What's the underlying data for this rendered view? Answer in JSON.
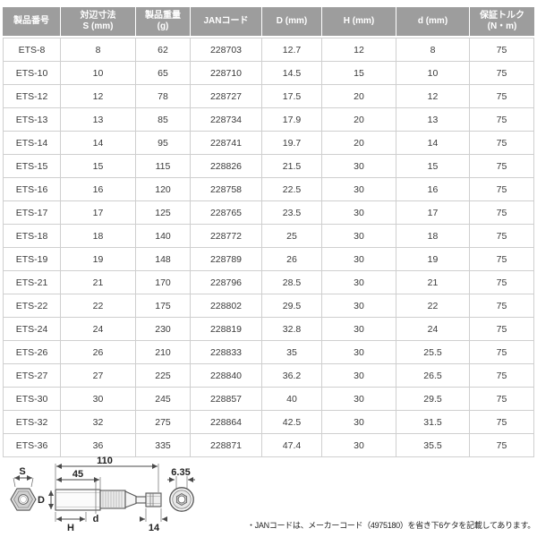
{
  "table": {
    "headers": [
      {
        "line1": "製品番号",
        "line2": ""
      },
      {
        "line1": "対辺寸法",
        "line2": "S (mm)"
      },
      {
        "line1": "製品重量",
        "line2": "(g)"
      },
      {
        "line1": "JANコード",
        "line2": ""
      },
      {
        "line1": "D (mm)",
        "line2": ""
      },
      {
        "line1": "H (mm)",
        "line2": ""
      },
      {
        "line1": "d (mm)",
        "line2": ""
      },
      {
        "line1": "保証トルク",
        "line2": "(N・m)"
      }
    ],
    "rows": [
      [
        "ETS-8",
        "8",
        "62",
        "228703",
        "12.7",
        "12",
        "8",
        "75"
      ],
      [
        "ETS-10",
        "10",
        "65",
        "228710",
        "14.5",
        "15",
        "10",
        "75"
      ],
      [
        "ETS-12",
        "12",
        "78",
        "228727",
        "17.5",
        "20",
        "12",
        "75"
      ],
      [
        "ETS-13",
        "13",
        "85",
        "228734",
        "17.9",
        "20",
        "13",
        "75"
      ],
      [
        "ETS-14",
        "14",
        "95",
        "228741",
        "19.7",
        "20",
        "14",
        "75"
      ],
      [
        "ETS-15",
        "15",
        "115",
        "228826",
        "21.5",
        "30",
        "15",
        "75"
      ],
      [
        "ETS-16",
        "16",
        "120",
        "228758",
        "22.5",
        "30",
        "16",
        "75"
      ],
      [
        "ETS-17",
        "17",
        "125",
        "228765",
        "23.5",
        "30",
        "17",
        "75"
      ],
      [
        "ETS-18",
        "18",
        "140",
        "228772",
        "25",
        "30",
        "18",
        "75"
      ],
      [
        "ETS-19",
        "19",
        "148",
        "228789",
        "26",
        "30",
        "19",
        "75"
      ],
      [
        "ETS-21",
        "21",
        "170",
        "228796",
        "28.5",
        "30",
        "21",
        "75"
      ],
      [
        "ETS-22",
        "22",
        "175",
        "228802",
        "29.5",
        "30",
        "22",
        "75"
      ],
      [
        "ETS-24",
        "24",
        "230",
        "228819",
        "32.8",
        "30",
        "24",
        "75"
      ],
      [
        "ETS-26",
        "26",
        "210",
        "228833",
        "35",
        "30",
        "25.5",
        "75"
      ],
      [
        "ETS-27",
        "27",
        "225",
        "228840",
        "36.2",
        "30",
        "26.5",
        "75"
      ],
      [
        "ETS-30",
        "30",
        "245",
        "228857",
        "40",
        "30",
        "29.5",
        "75"
      ],
      [
        "ETS-32",
        "32",
        "275",
        "228864",
        "42.5",
        "30",
        "31.5",
        "75"
      ],
      [
        "ETS-36",
        "36",
        "335",
        "228871",
        "47.4",
        "30",
        "35.5",
        "75"
      ]
    ]
  },
  "diagram": {
    "dim_total_length": "110",
    "dim_socket_length": "45",
    "dim_hex_shank": "6.35",
    "dim_shank_length": "14",
    "label_s": "S",
    "label_D": "D",
    "label_H": "H",
    "label_d": "d"
  },
  "note": "・JANコードは、メーカーコード（4975180）を省き下6ケタを記載してあります。",
  "colors": {
    "header_bg": "#9d9d9d",
    "header_text": "#ffffff",
    "cell_text": "#3a3a3a",
    "grid_border": "#cfcfcf",
    "diagram_line": "#4a4a4a"
  }
}
